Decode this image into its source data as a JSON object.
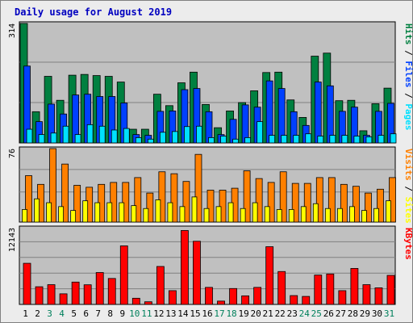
{
  "chart_data": [
    {
      "type": "bar",
      "title": "Daily usage for August 2019",
      "panel": "top",
      "ymax": 314,
      "ytick_label": "314",
      "right_label_parts": [
        "Pages",
        "Files",
        "Hits"
      ],
      "series": [
        {
          "name": "Hits",
          "color": "#008040",
          "values": [
            314,
            82,
            175,
            112,
            178,
            180,
            177,
            175,
            160,
            36,
            36,
            128,
            98,
            158,
            186,
            101,
            40,
            84,
            106,
            137,
            185,
            186,
            113,
            67,
            228,
            236,
            111,
            112,
            32,
            103,
            144
          ]
        },
        {
          "name": "Files",
          "color": "#0040ff",
          "values": [
            202,
            56,
            102,
            76,
            126,
            128,
            122,
            122,
            105,
            22,
            20,
            83,
            84,
            140,
            143,
            82,
            22,
            62,
            100,
            94,
            163,
            143,
            82,
            46,
            160,
            150,
            83,
            94,
            20,
            83,
            104
          ]
        },
        {
          "name": "Pages",
          "color": "#00e0ff",
          "values": [
            36,
            22,
            26,
            44,
            22,
            48,
            44,
            34,
            38,
            14,
            10,
            28,
            30,
            43,
            44,
            14,
            18,
            10,
            14,
            56,
            20,
            20,
            20,
            24,
            18,
            20,
            20,
            18,
            16,
            20,
            24
          ]
        }
      ]
    },
    {
      "type": "bar",
      "panel": "middle",
      "ymax": 76,
      "ytick_label": "76",
      "right_label_parts": [
        "Sites",
        "Visits"
      ],
      "series": [
        {
          "name": "Visits",
          "color": "#ff8000",
          "values": [
            48,
            39,
            76,
            60,
            38,
            36,
            39,
            41,
            41,
            46,
            30,
            52,
            50,
            42,
            70,
            33,
            33,
            35,
            53,
            45,
            41,
            52,
            40,
            40,
            46,
            46,
            39,
            37,
            30,
            34,
            46
          ]
        },
        {
          "name": "Sites",
          "color": "#ffff00",
          "values": [
            13,
            24,
            20,
            16,
            12,
            22,
            20,
            20,
            20,
            17,
            14,
            23,
            20,
            16,
            26,
            14,
            16,
            20,
            14,
            20,
            16,
            13,
            13,
            16,
            19,
            14,
            14,
            16,
            12,
            14,
            22
          ]
        }
      ]
    },
    {
      "type": "bar",
      "panel": "bottom",
      "ymax": 12143,
      "ytick_label": "12143",
      "right_label_parts": [
        "KBytes"
      ],
      "series": [
        {
          "name": "KBytes",
          "color": "#ff0000",
          "values": [
            6510,
            2800,
            3130,
            1680,
            3540,
            3110,
            5050,
            4110,
            9270,
            980,
            420,
            6010,
            2180,
            11700,
            10000,
            2700,
            530,
            2520,
            1360,
            2700,
            9140,
            5210,
            1400,
            1270,
            4650,
            4820,
            2180,
            5700,
            3130,
            2630,
            4600
          ]
        }
      ]
    }
  ],
  "x_axis": {
    "labels": [
      "1",
      "2",
      "3",
      "4",
      "5",
      "6",
      "7",
      "8",
      "9",
      "10",
      "11",
      "12",
      "13",
      "14",
      "15",
      "16",
      "17",
      "18",
      "19",
      "20",
      "21",
      "22",
      "23",
      "24",
      "25",
      "26",
      "27",
      "28",
      "29",
      "30",
      "31"
    ],
    "weekday_color": "#000000",
    "weekend_color": "#00805c",
    "weekend_days": [
      3,
      4,
      10,
      11,
      17,
      18,
      24,
      25,
      31
    ]
  },
  "colors": {
    "panel_bg": "#c0c0c0",
    "frame_bg": "#ececec",
    "title": "#0000c0",
    "separator": "#000000"
  }
}
